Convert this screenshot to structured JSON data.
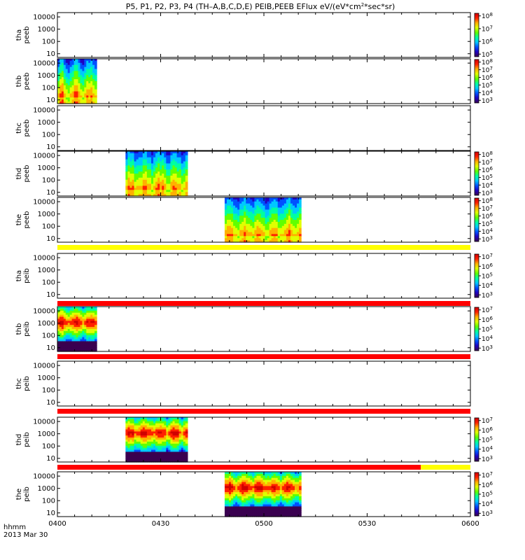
{
  "chart_data": {
    "type": "heatmap",
    "title_parts": [
      "P5, P1, P2, P3, P4 (TH–A,B,C,D,E) PEIB,PEEB EFlux eV/(eV*cm",
      "2",
      "*sec*sr)"
    ],
    "x_ticks": [
      "0400",
      "0430",
      "0500",
      "0530",
      "0600"
    ],
    "x_range_hours": [
      4.0,
      6.0
    ],
    "x_corner_label": "hhmm",
    "date_label": "2013 Mar 30",
    "y_ticks": [
      "10",
      "100",
      "1000",
      "10000"
    ],
    "y_scale": "log",
    "panels": [
      {
        "probe": "tha",
        "product": "peeb",
        "ylabel": "tha\npeeb",
        "data_start": null,
        "data_end": null,
        "colorbar": {
          "min_exp": 5,
          "max_exp": 8,
          "ticks": [
            {
              "base": "10",
              "exp": "5"
            },
            {
              "base": "10",
              "exp": "6"
            },
            {
              "base": "10",
              "exp": "7"
            },
            {
              "base": "10",
              "exp": "8"
            }
          ]
        },
        "flag_bar": null
      },
      {
        "probe": "thb",
        "product": "peeb",
        "ylabel": "thb\npeeb",
        "data_start": 4.0,
        "data_end": 4.19,
        "colorbar": {
          "min_exp": 3,
          "max_exp": 8,
          "ticks": [
            {
              "base": "10",
              "exp": "3"
            },
            {
              "base": "10",
              "exp": "4"
            },
            {
              "base": "10",
              "exp": "5"
            },
            {
              "base": "10",
              "exp": "6"
            },
            {
              "base": "10",
              "exp": "7"
            },
            {
              "base": "10",
              "exp": "8"
            }
          ]
        },
        "flag_bar": null
      },
      {
        "probe": "thc",
        "product": "peeb",
        "ylabel": "thc\npeeb",
        "data_start": null,
        "data_end": null,
        "colorbar": null,
        "flag_bar": null
      },
      {
        "probe": "thd",
        "product": "peeb",
        "ylabel": "thd\npeeb",
        "data_start": 4.33,
        "data_end": 4.63,
        "colorbar": {
          "min_exp": 3,
          "max_exp": 8,
          "ticks": [
            {
              "base": "10",
              "exp": "3"
            },
            {
              "base": "10",
              "exp": "4"
            },
            {
              "base": "10",
              "exp": "5"
            },
            {
              "base": "10",
              "exp": "6"
            },
            {
              "base": "10",
              "exp": "7"
            },
            {
              "base": "10",
              "exp": "8"
            }
          ]
        },
        "flag_bar": null
      },
      {
        "probe": "the",
        "product": "peeb",
        "ylabel": "the\npeeb",
        "data_start": 4.81,
        "data_end": 5.18,
        "colorbar": {
          "min_exp": 3,
          "max_exp": 8,
          "ticks": [
            {
              "base": "10",
              "exp": "3"
            },
            {
              "base": "10",
              "exp": "4"
            },
            {
              "base": "10",
              "exp": "5"
            },
            {
              "base": "10",
              "exp": "6"
            },
            {
              "base": "10",
              "exp": "7"
            },
            {
              "base": "10",
              "exp": "8"
            }
          ]
        },
        "flag_bar": {
          "segments": [
            {
              "start": 4.0,
              "end": 6.0,
              "color": "#ffff00"
            }
          ]
        }
      },
      {
        "probe": "tha",
        "product": "peib",
        "ylabel": "tha\npeib",
        "data_start": null,
        "data_end": null,
        "colorbar": {
          "min_exp": 3,
          "max_exp": 7,
          "ticks": [
            {
              "base": "10",
              "exp": "3"
            },
            {
              "base": "10",
              "exp": "4"
            },
            {
              "base": "10",
              "exp": "5"
            },
            {
              "base": "10",
              "exp": "6"
            },
            {
              "base": "10",
              "exp": "7"
            }
          ]
        },
        "flag_bar": {
          "segments": [
            {
              "start": 4.0,
              "end": 6.0,
              "color": "#ff0000"
            }
          ]
        }
      },
      {
        "probe": "thb",
        "product": "peib",
        "ylabel": "thb\npeib",
        "data_start": 4.0,
        "data_end": 4.19,
        "colorbar": {
          "min_exp": 3,
          "max_exp": 7,
          "ticks": [
            {
              "base": "10",
              "exp": "3"
            },
            {
              "base": "10",
              "exp": "4"
            },
            {
              "base": "10",
              "exp": "5"
            },
            {
              "base": "10",
              "exp": "6"
            },
            {
              "base": "10",
              "exp": "7"
            }
          ]
        },
        "flag_bar": {
          "segments": [
            {
              "start": 4.0,
              "end": 6.0,
              "color": "#ff0000"
            }
          ]
        }
      },
      {
        "probe": "thc",
        "product": "peib",
        "ylabel": "thc\npeib",
        "data_start": null,
        "data_end": null,
        "colorbar": null,
        "flag_bar": {
          "segments": [
            {
              "start": 4.0,
              "end": 6.0,
              "color": "#ff0000"
            }
          ]
        }
      },
      {
        "probe": "thd",
        "product": "peib",
        "ylabel": "thd\npeib",
        "data_start": 4.33,
        "data_end": 4.63,
        "colorbar": {
          "min_exp": 3,
          "max_exp": 7,
          "ticks": [
            {
              "base": "10",
              "exp": "3"
            },
            {
              "base": "10",
              "exp": "4"
            },
            {
              "base": "10",
              "exp": "5"
            },
            {
              "base": "10",
              "exp": "6"
            },
            {
              "base": "10",
              "exp": "7"
            }
          ]
        },
        "flag_bar": {
          "segments": [
            {
              "start": 4.0,
              "end": 5.76,
              "color": "#ff0000"
            },
            {
              "start": 5.76,
              "end": 6.0,
              "color": "#ffff00"
            }
          ]
        }
      },
      {
        "probe": "the",
        "product": "peib",
        "ylabel": "the\npeib",
        "data_start": 4.81,
        "data_end": 5.18,
        "colorbar": {
          "min_exp": 3,
          "max_exp": 7,
          "ticks": [
            {
              "base": "10",
              "exp": "3"
            },
            {
              "base": "10",
              "exp": "4"
            },
            {
              "base": "10",
              "exp": "5"
            },
            {
              "base": "10",
              "exp": "6"
            },
            {
              "base": "10",
              "exp": "7"
            }
          ]
        },
        "flag_bar": null
      }
    ],
    "colors": {
      "colormap": [
        "#3a0050",
        "#2000c0",
        "#0050ff",
        "#00c8ff",
        "#00ffa0",
        "#60ff00",
        "#e0ff00",
        "#ffb000",
        "#ff2000",
        "#d00000"
      ],
      "flag_red": "#ff0000",
      "flag_yellow": "#ffff00"
    }
  }
}
